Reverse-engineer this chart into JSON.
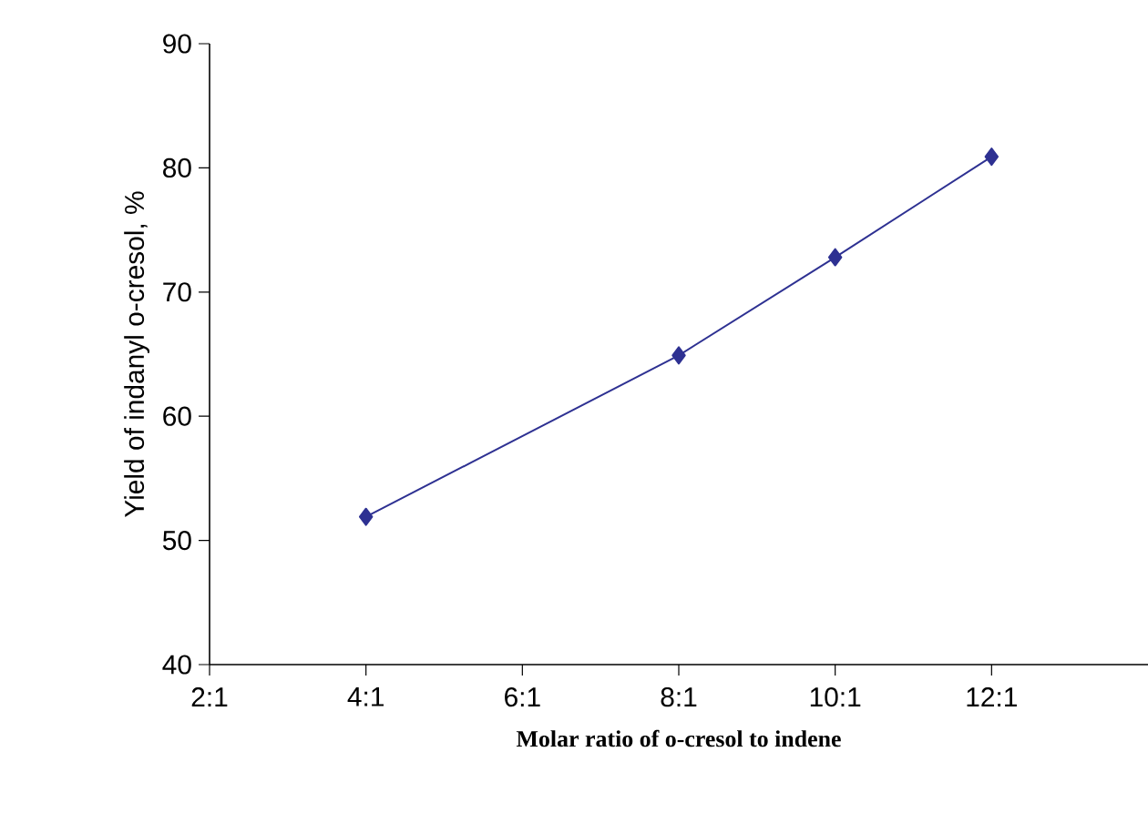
{
  "chart_data": {
    "type": "line",
    "xlabel": "Molar ratio of o-cresol to indene",
    "ylabel": "Yield of indanyl o-cresol, %",
    "categories": [
      "2:1",
      "4:1",
      "6:1",
      "8:1",
      "10:1",
      "12:1",
      null
    ],
    "series": [
      {
        "color": "#2e3192",
        "values": [
          null,
          51.9,
          null,
          64.9,
          72.8,
          80.9,
          null
        ]
      }
    ],
    "marker": "diamond",
    "line_style": "solid",
    "grid": false,
    "ylim": [
      40,
      90
    ],
    "yticks": [
      40,
      50,
      60,
      70,
      80,
      90
    ]
  }
}
